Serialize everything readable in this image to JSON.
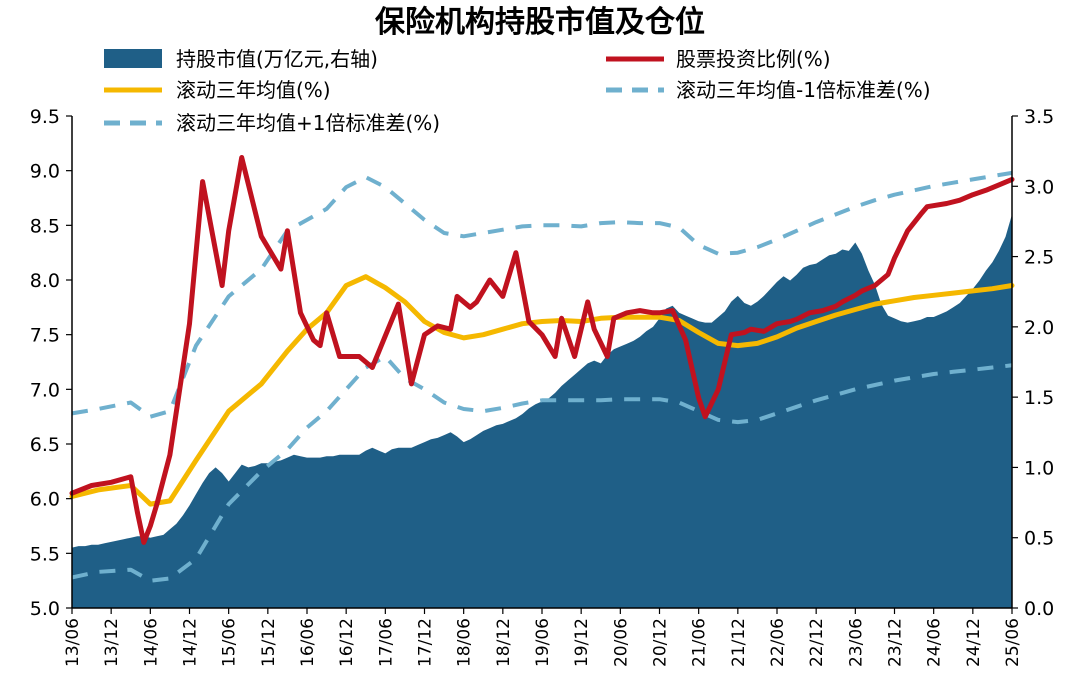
{
  "chart_data": {
    "type": "area+line",
    "title": "保险机构持股市值及仓位",
    "x_tick_labels": [
      "13/06",
      "13/12",
      "14/06",
      "14/12",
      "15/06",
      "15/12",
      "16/06",
      "16/12",
      "17/06",
      "17/12",
      "18/06",
      "18/12",
      "19/06",
      "19/12",
      "20/06",
      "20/12",
      "21/06",
      "21/12",
      "22/06",
      "22/12",
      "23/06",
      "23/12",
      "24/06",
      "24/12",
      "25/06"
    ],
    "left_axis": {
      "ylim": [
        5.0,
        9.5
      ],
      "ticks": [
        "5.0",
        "5.5",
        "6.0",
        "6.5",
        "7.0",
        "7.5",
        "8.0",
        "8.5",
        "9.0",
        "9.5"
      ]
    },
    "right_axis": {
      "ylim": [
        0.0,
        3.5
      ],
      "ticks": [
        "0.0",
        "0.5",
        "1.0",
        "1.5",
        "2.0",
        "2.5",
        "3.0",
        "3.5"
      ]
    },
    "series": [
      {
        "name": "持股市值(万亿元,右轴)",
        "type": "area",
        "axis": "right",
        "color": "#1f5f87",
        "x": [
          0,
          1,
          2,
          3,
          4,
          5,
          6,
          7,
          8,
          9,
          10,
          11,
          12,
          13,
          14,
          15,
          16,
          17,
          18,
          19,
          20,
          21,
          22,
          23,
          24,
          25,
          26,
          27,
          28,
          29,
          30,
          31,
          32,
          33,
          34,
          35,
          36,
          37,
          38,
          39,
          40,
          41,
          42,
          43,
          44,
          45,
          46,
          47,
          48,
          49,
          50,
          51,
          52,
          53,
          54,
          55,
          56,
          57,
          58,
          59,
          60,
          61,
          62,
          63,
          64,
          65,
          66,
          67,
          68,
          69,
          70,
          71,
          72,
          73,
          74,
          75,
          76,
          77,
          78,
          79,
          80,
          81,
          82,
          83,
          84,
          85,
          86,
          87,
          88,
          89,
          90,
          91,
          92,
          93,
          94,
          95,
          96,
          97,
          98,
          99,
          100,
          101,
          102,
          103,
          104,
          105,
          106,
          107,
          108,
          109,
          110,
          111,
          112,
          113,
          114,
          115,
          116,
          117,
          118,
          119,
          120,
          121,
          122,
          123,
          124,
          125,
          126,
          127,
          128,
          129,
          130,
          131,
          132,
          133,
          134,
          135,
          136,
          137,
          138,
          139,
          140,
          141,
          142,
          143,
          144
        ],
        "values": [
          0.43,
          0.44,
          0.44,
          0.45,
          0.45,
          0.46,
          0.47,
          0.48,
          0.49,
          0.5,
          0.51,
          0.51,
          0.5,
          0.51,
          0.52,
          0.56,
          0.6,
          0.66,
          0.73,
          0.81,
          0.89,
          0.96,
          1.0,
          0.96,
          0.9,
          0.96,
          1.02,
          1.0,
          1.01,
          1.03,
          1.03,
          1.04,
          1.05,
          1.07,
          1.09,
          1.08,
          1.07,
          1.07,
          1.07,
          1.08,
          1.08,
          1.09,
          1.09,
          1.09,
          1.09,
          1.12,
          1.14,
          1.12,
          1.1,
          1.13,
          1.14,
          1.14,
          1.14,
          1.16,
          1.18,
          1.2,
          1.21,
          1.23,
          1.25,
          1.22,
          1.18,
          1.2,
          1.23,
          1.26,
          1.28,
          1.3,
          1.31,
          1.33,
          1.35,
          1.38,
          1.42,
          1.45,
          1.47,
          1.49,
          1.53,
          1.58,
          1.62,
          1.66,
          1.7,
          1.74,
          1.76,
          1.74,
          1.8,
          1.84,
          1.86,
          1.88,
          1.9,
          1.93,
          1.97,
          2.0,
          2.06,
          2.13,
          2.15,
          2.1,
          2.08,
          2.06,
          2.04,
          2.03,
          2.03,
          2.07,
          2.11,
          2.18,
          2.22,
          2.17,
          2.15,
          2.18,
          2.22,
          2.27,
          2.32,
          2.36,
          2.33,
          2.37,
          2.42,
          2.44,
          2.45,
          2.48,
          2.51,
          2.52,
          2.55,
          2.54,
          2.6,
          2.52,
          2.4,
          2.3,
          2.16,
          2.08,
          2.06,
          2.04,
          2.03,
          2.04,
          2.05,
          2.07,
          2.07,
          2.09,
          2.11,
          2.14,
          2.17,
          2.22,
          2.27,
          2.33,
          2.4,
          2.46,
          2.54,
          2.64,
          2.8
        ]
      },
      {
        "name": "股票投资比例(%)",
        "type": "line",
        "axis": "left",
        "color": "#c0121f",
        "x": [
          0,
          3,
          6,
          9,
          10,
          11,
          12,
          13,
          15,
          18,
          20,
          23,
          24,
          26,
          29,
          32,
          33,
          35,
          37,
          38,
          39,
          41,
          44,
          46,
          50,
          52,
          54,
          56,
          58,
          59,
          61,
          62,
          64,
          66,
          68,
          70,
          72,
          74,
          75,
          77,
          79,
          80,
          82,
          83,
          85,
          87,
          89,
          90,
          92,
          94,
          96,
          97,
          99,
          101,
          103,
          104,
          106,
          108,
          110,
          111,
          113,
          115,
          117,
          118,
          120,
          121,
          123,
          125,
          126,
          128,
          130,
          131,
          134,
          136,
          138,
          140,
          142,
          144
        ],
        "values": [
          6.05,
          6.12,
          6.15,
          6.2,
          5.88,
          5.6,
          5.75,
          5.95,
          6.4,
          7.6,
          8.9,
          7.95,
          8.45,
          9.12,
          8.4,
          8.1,
          8.45,
          7.7,
          7.45,
          7.4,
          7.7,
          7.3,
          7.3,
          7.2,
          7.78,
          7.05,
          7.5,
          7.58,
          7.55,
          7.85,
          7.75,
          7.8,
          8.0,
          7.85,
          8.25,
          7.62,
          7.5,
          7.3,
          7.65,
          7.3,
          7.8,
          7.55,
          7.3,
          7.65,
          7.7,
          7.72,
          7.7,
          7.7,
          7.72,
          7.45,
          6.92,
          6.75,
          7.0,
          7.5,
          7.52,
          7.55,
          7.53,
          7.6,
          7.62,
          7.64,
          7.7,
          7.72,
          7.76,
          7.8,
          7.86,
          7.9,
          7.95,
          8.05,
          8.2,
          8.45,
          8.6,
          8.67,
          8.7,
          8.73,
          8.78,
          8.82,
          8.87,
          8.92
        ]
      },
      {
        "name": "滚动三年均值(%)",
        "type": "line",
        "axis": "left",
        "color": "#f5b800",
        "x": [
          0,
          4,
          9,
          12,
          15,
          19,
          24,
          29,
          33,
          36,
          39,
          42,
          45,
          48,
          51,
          54,
          57,
          60,
          63,
          66,
          69,
          72,
          75,
          78,
          81,
          84,
          87,
          90,
          93,
          96,
          99,
          102,
          105,
          108,
          111,
          114,
          117,
          120,
          123,
          126,
          129,
          132,
          135,
          138,
          141,
          144
        ],
        "values": [
          6.02,
          6.08,
          6.12,
          5.95,
          5.98,
          6.35,
          6.8,
          7.05,
          7.35,
          7.55,
          7.7,
          7.95,
          8.03,
          7.93,
          7.8,
          7.62,
          7.52,
          7.47,
          7.5,
          7.55,
          7.6,
          7.62,
          7.63,
          7.62,
          7.65,
          7.66,
          7.66,
          7.66,
          7.63,
          7.52,
          7.42,
          7.4,
          7.42,
          7.48,
          7.56,
          7.62,
          7.68,
          7.73,
          7.78,
          7.81,
          7.84,
          7.86,
          7.88,
          7.9,
          7.92,
          7.95
        ]
      },
      {
        "name": "滚动三年均值-1倍标准差(%)",
        "type": "line",
        "dash": true,
        "axis": "left",
        "color": "#6fb0ce",
        "x": [
          0,
          4,
          9,
          12,
          15,
          19,
          24,
          29,
          33,
          36,
          39,
          42,
          45,
          48,
          51,
          54,
          57,
          60,
          63,
          66,
          69,
          72,
          75,
          78,
          81,
          84,
          87,
          90,
          93,
          96,
          99,
          102,
          105,
          108,
          111,
          114,
          117,
          120,
          123,
          126,
          129,
          132,
          135,
          138,
          141,
          144
        ],
        "values": [
          5.28,
          5.33,
          5.35,
          5.25,
          5.27,
          5.45,
          5.95,
          6.25,
          6.45,
          6.65,
          6.8,
          7.0,
          7.2,
          7.3,
          7.1,
          7.0,
          6.88,
          6.82,
          6.8,
          6.83,
          6.87,
          6.9,
          6.9,
          6.9,
          6.9,
          6.91,
          6.91,
          6.91,
          6.88,
          6.8,
          6.72,
          6.7,
          6.72,
          6.78,
          6.84,
          6.9,
          6.95,
          7.0,
          7.04,
          7.08,
          7.11,
          7.14,
          7.16,
          7.18,
          7.2,
          7.22
        ]
      },
      {
        "name": "滚动三年均值+1倍标准差(%)",
        "type": "line",
        "dash": true,
        "axis": "left",
        "color": "#6fb0ce",
        "x": [
          0,
          4,
          9,
          12,
          15,
          19,
          24,
          29,
          33,
          36,
          39,
          42,
          45,
          48,
          51,
          54,
          57,
          60,
          63,
          66,
          69,
          72,
          75,
          78,
          81,
          84,
          87,
          90,
          93,
          96,
          99,
          102,
          105,
          108,
          111,
          114,
          117,
          120,
          123,
          126,
          129,
          132,
          135,
          138,
          141,
          144
        ],
        "values": [
          6.78,
          6.82,
          6.88,
          6.75,
          6.8,
          7.4,
          7.85,
          8.1,
          8.45,
          8.55,
          8.65,
          8.85,
          8.94,
          8.85,
          8.7,
          8.55,
          8.43,
          8.4,
          8.43,
          8.46,
          8.49,
          8.5,
          8.5,
          8.49,
          8.52,
          8.53,
          8.52,
          8.52,
          8.48,
          8.32,
          8.24,
          8.25,
          8.3,
          8.37,
          8.45,
          8.53,
          8.6,
          8.67,
          8.73,
          8.78,
          8.82,
          8.86,
          8.89,
          8.92,
          8.95,
          8.98
        ]
      }
    ],
    "legend": {
      "placement": "top",
      "rows": [
        [
          "持股市值(万亿元,右轴)",
          "股票投资比例(%)"
        ],
        [
          "滚动三年均值(%)",
          "滚动三年均值-1倍标准差(%)"
        ],
        [
          "滚动三年均值+1倍标准差(%)"
        ]
      ]
    }
  }
}
